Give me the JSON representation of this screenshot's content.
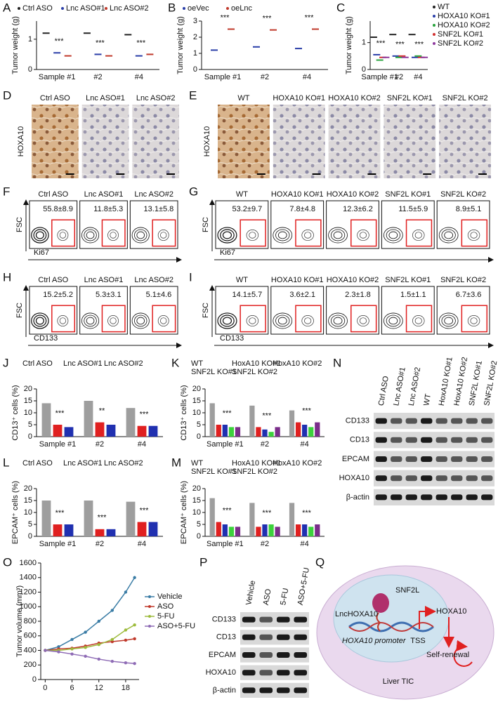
{
  "panels": [
    {
      "label": "A",
      "type": "dot",
      "ylabel": "Tumor weight (g)",
      "ylim": [
        0,
        1.6
      ],
      "yticks": [
        0,
        1
      ],
      "groups": [
        "Sample #1",
        "#2",
        "#4"
      ],
      "series": [
        {
          "name": "Ctrl ASO",
          "color": "#222222",
          "values": [
            1.2,
            1.2,
            1.15
          ]
        },
        {
          "name": "Lnc ASO#1",
          "color": "#2a3ea8",
          "values": [
            0.55,
            0.5,
            0.45
          ]
        },
        {
          "name": "Lnc ASO#2",
          "color": "#c0392b",
          "values": [
            0.45,
            0.45,
            0.5
          ]
        }
      ],
      "annotations": [
        "***",
        "***",
        "***"
      ]
    },
    {
      "label": "B",
      "type": "dot",
      "ylabel": "Tumor weight (g)",
      "ylim": [
        0,
        3
      ],
      "yticks": [
        0,
        1,
        2,
        3
      ],
      "groups": [
        "Sample #1",
        "#2",
        "#4"
      ],
      "series": [
        {
          "name": "oeVec",
          "color": "#2a3ea8",
          "values": [
            1.2,
            1.4,
            1.3
          ]
        },
        {
          "name": "oeLnc",
          "color": "#c0392b",
          "values": [
            2.5,
            2.45,
            2.5
          ]
        }
      ],
      "annotations": [
        "***",
        "***",
        "***"
      ]
    },
    {
      "label": "C",
      "type": "dot",
      "ylabel": "Tumor weight (g)",
      "ylim": [
        0,
        1.8
      ],
      "yticks": [
        0,
        1
      ],
      "groups": [
        "Sample #1",
        "#2",
        "#4"
      ],
      "series": [
        {
          "name": "WT",
          "color": "#222222",
          "values": [
            1.2,
            1.3,
            1.3
          ]
        },
        {
          "name": "HOXA10 KO#1",
          "color": "#2a3ea8",
          "values": [
            0.55,
            0.5,
            0.45
          ]
        },
        {
          "name": "HOXA10 KO#2",
          "color": "#27a33c",
          "values": [
            0.35,
            0.45,
            0.5
          ]
        },
        {
          "name": "SNF2L KO#1",
          "color": "#d03030",
          "values": [
            0.45,
            0.5,
            0.45
          ]
        },
        {
          "name": "SNF2L KO#2",
          "color": "#8e3a9e",
          "values": [
            0.45,
            0.45,
            0.45
          ]
        }
      ],
      "annotations": [
        "***",
        "***",
        "***"
      ]
    },
    {
      "label": "D",
      "type": "ihc",
      "ylabel": "HOXA10",
      "titles": [
        "Ctrl ASO",
        "Lnc ASO#1",
        "Lnc ASO#2"
      ]
    },
    {
      "label": "E",
      "type": "ihc",
      "ylabel": "HOXA10",
      "titles": [
        "WT",
        "HOXA10 KO#1",
        "HOXA10 KO#2",
        "SNF2L KO#1",
        "SNF2L KO#2"
      ]
    },
    {
      "label": "F",
      "type": "flow",
      "ylabel": "FSC",
      "xlabel": "Ki67",
      "titles": [
        "Ctrl ASO",
        "Lnc ASO#1",
        "Lnc ASO#2"
      ],
      "percents": [
        "55.8±8.9",
        "11.8±5.3",
        "13.1±5.8"
      ]
    },
    {
      "label": "G",
      "type": "flow",
      "ylabel": "FSC",
      "xlabel": "Ki67",
      "titles": [
        "WT",
        "HOXA10 KO#1",
        "HOXA10 KO#2",
        "SNF2L KO#1",
        "SNF2L KO#2"
      ],
      "percents": [
        "53.2±9.7",
        "7.8±4.8",
        "12.3±6.2",
        "11.5±5.9",
        "8.9±5.1"
      ]
    },
    {
      "label": "H",
      "type": "flow",
      "ylabel": "FSC",
      "xlabel": "CD133",
      "titles": [
        "Ctrl ASO",
        "Lnc ASO#1",
        "Lnc ASO#2"
      ],
      "percents": [
        "15.2±5.2",
        "5.3±3.1",
        "5.1±4.6"
      ]
    },
    {
      "label": "I",
      "type": "flow",
      "ylabel": "FSC",
      "xlabel": "CD133",
      "titles": [
        "WT",
        "HOXA10 KO#1",
        "HOXA10 KO#2",
        "SNF2L KO#1",
        "SNF2L KO#2"
      ],
      "percents": [
        "14.1±5.7",
        "3.6±2.1",
        "2.3±1.8",
        "1.5±1.1",
        "6.7±3.6"
      ]
    },
    {
      "label": "J",
      "type": "bar",
      "ylabel": "CD13⁺ cells (%)",
      "ylim": [
        0,
        20
      ],
      "yticks": [
        0,
        5,
        10,
        15,
        20
      ],
      "groups": [
        "Sample #1",
        "#2",
        "#4"
      ],
      "series": [
        {
          "name": "Ctrl ASO",
          "color": "#9e9e9e",
          "values": [
            14,
            15,
            12
          ]
        },
        {
          "name": "Lnc ASO#1",
          "color": "#e02020",
          "values": [
            5,
            6,
            4.5
          ]
        },
        {
          "name": "Lnc ASO#2",
          "color": "#2030b0",
          "values": [
            4,
            5,
            4.5
          ]
        }
      ],
      "annotations": [
        "***",
        "**",
        "***"
      ]
    },
    {
      "label": "K",
      "type": "bar",
      "ylabel": "CD13⁺ cells (%)",
      "ylim": [
        0,
        20
      ],
      "yticks": [
        0,
        5,
        10,
        15,
        20
      ],
      "groups": [
        "Sample #1",
        "#2",
        "#4"
      ],
      "series": [
        {
          "name": "WT",
          "color": "#9e9e9e",
          "values": [
            14,
            13,
            11
          ]
        },
        {
          "name": "HoxA10 KO#1",
          "color": "#e02020",
          "values": [
            5,
            4,
            6
          ]
        },
        {
          "name": "HoxA10 KO#2",
          "color": "#2030b0",
          "values": [
            5,
            3,
            5
          ]
        },
        {
          "name": "SNF2L KO#1",
          "color": "#3cd13c",
          "values": [
            4,
            2,
            4
          ]
        },
        {
          "name": "SNF2L KO#2",
          "color": "#7a2d8a",
          "values": [
            4,
            4,
            6
          ]
        }
      ],
      "annotations": [
        "***",
        "***",
        "***"
      ]
    },
    {
      "label": "L",
      "type": "bar",
      "ylabel": "EPCAM⁺ cells (%)",
      "ylim": [
        0,
        20
      ],
      "yticks": [
        0,
        5,
        10,
        15,
        20
      ],
      "groups": [
        "Sample #1",
        "#2",
        "#4"
      ],
      "series": [
        {
          "name": "Ctrl ASO",
          "color": "#9e9e9e",
          "values": [
            15,
            15,
            14.5
          ]
        },
        {
          "name": "Lnc ASO#1",
          "color": "#e02020",
          "values": [
            5,
            3,
            6
          ]
        },
        {
          "name": "Lnc ASO#2",
          "color": "#2030b0",
          "values": [
            5,
            3,
            6
          ]
        }
      ],
      "annotations": [
        "***",
        "***",
        "***"
      ]
    },
    {
      "label": "M",
      "type": "bar",
      "ylabel": "EPCAM⁺ cells (%)",
      "ylim": [
        0,
        20
      ],
      "yticks": [
        0,
        5,
        10,
        15,
        20
      ],
      "groups": [
        "Sample #1",
        "#2",
        "#4"
      ],
      "series": [
        {
          "name": "WT",
          "color": "#9e9e9e",
          "values": [
            16,
            14,
            14
          ]
        },
        {
          "name": "HoxA10 KO#1",
          "color": "#e02020",
          "values": [
            6,
            4,
            5
          ]
        },
        {
          "name": "HoxA10 KO#2",
          "color": "#2030b0",
          "values": [
            5,
            5,
            5
          ]
        },
        {
          "name": "SNF2L KO#1",
          "color": "#3cd13c",
          "values": [
            4,
            5,
            4
          ]
        },
        {
          "name": "SNF2L KO#2",
          "color": "#7a2d8a",
          "values": [
            4,
            4,
            5
          ]
        }
      ],
      "annotations": [
        "***",
        "***",
        "***"
      ]
    },
    {
      "label": "N",
      "type": "blot",
      "columns": [
        "Ctrl ASO",
        "Lnc ASO#1",
        "Lnc ASO#2",
        "WT",
        "HoxA10 KO#1",
        "HoxA10 KO#2",
        "SNF2L KO#1",
        "SNF2L KO#2"
      ],
      "rows": [
        "CD133",
        "CD13",
        "EPCAM",
        "HOXA10",
        "β-actin"
      ]
    },
    {
      "label": "O",
      "type": "line",
      "ylabel": "Tumor volume (mm³)",
      "x": [
        0,
        3,
        6,
        9,
        12,
        15,
        18,
        20
      ],
      "xlim": [
        -1,
        21
      ],
      "xticks": [
        0,
        6,
        12,
        18
      ],
      "ylim": [
        0,
        1600
      ],
      "yticks": [
        0,
        200,
        400,
        600,
        800,
        1000,
        1200,
        1400,
        1600
      ],
      "series": [
        {
          "name": "Vehicle",
          "color": "#3a7ca5",
          "values": [
            400,
            450,
            550,
            650,
            800,
            950,
            1200,
            1400
          ]
        },
        {
          "name": "ASO",
          "color": "#c0392b",
          "values": [
            400,
            420,
            430,
            460,
            500,
            520,
            540,
            560
          ]
        },
        {
          "name": "5-FU",
          "color": "#9dbb3c",
          "values": [
            400,
            400,
            420,
            440,
            480,
            550,
            680,
            750
          ]
        },
        {
          "name": "ASO+5-FU",
          "color": "#8e6bb5",
          "values": [
            400,
            380,
            350,
            320,
            280,
            250,
            230,
            220
          ]
        }
      ]
    },
    {
      "label": "P",
      "type": "blot",
      "columns": [
        "Vehicle",
        "ASO",
        "5-FU",
        "ASO+5-FU"
      ],
      "rows": [
        "CD133",
        "CD13",
        "EPCAM",
        "HOXA10",
        "β-actin"
      ]
    },
    {
      "label": "Q",
      "type": "diagram",
      "texts": {
        "protein": "SNF2L",
        "lnc": "LncHOXA10",
        "gene": "HOXA10",
        "promoter": "HOXA10 promoter",
        "tss": "TSS",
        "outcome": "Self-renewal",
        "cell": "Liver TIC"
      }
    }
  ]
}
